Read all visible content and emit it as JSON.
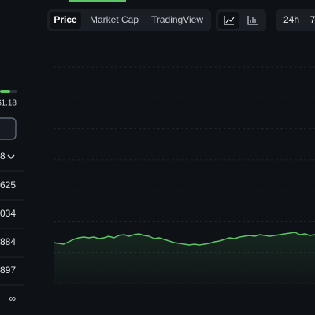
{
  "sidebar": {
    "price_high": "$1.18",
    "selector_value": "8",
    "stats": [
      "625",
      "034",
      "884",
      "897",
      "∞"
    ]
  },
  "tabs": [
    "Price",
    "Market Cap",
    "TradingView"
  ],
  "timeframes": [
    "24h",
    "7"
  ],
  "price_chart": {
    "type": "line",
    "color": "#5cc567",
    "values": [
      52,
      51,
      50,
      53,
      56,
      58,
      59,
      58,
      59,
      57,
      58,
      60,
      58,
      61,
      62,
      60,
      62,
      63,
      61,
      60,
      57,
      58,
      56,
      54,
      52,
      51,
      50,
      49,
      50,
      49,
      50,
      51,
      53,
      54,
      56,
      58,
      57,
      59,
      60,
      61,
      60,
      62,
      61,
      60,
      61,
      62,
      63,
      64,
      65,
      62,
      63,
      61,
      62
    ]
  }
}
